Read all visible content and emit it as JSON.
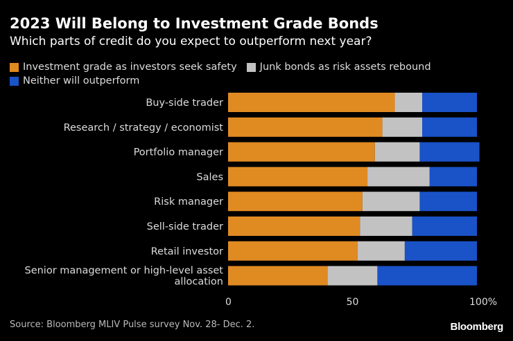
{
  "colors": {
    "investment": "#e08a22",
    "junk": "#c2c2c2",
    "neither": "#1a52c8",
    "background": "#000000"
  },
  "chart_data": {
    "type": "bar",
    "orientation": "horizontal",
    "stacked": true,
    "title": "2023 Will Belong to Investment Grade Bonds",
    "subtitle": "Which parts of credit do you expect to outperform next year?",
    "categories": [
      "Buy-side trader",
      "Research / strategy / economist",
      "Portfolio manager",
      "Sales",
      "Risk manager",
      "Sell-side trader",
      "Retail investor",
      "Senior management or high-level asset allocation"
    ],
    "category_lines": [
      [
        "Buy-side trader"
      ],
      [
        "Research / strategy / economist"
      ],
      [
        "Portfolio manager"
      ],
      [
        "Sales"
      ],
      [
        "Risk manager"
      ],
      [
        "Sell-side trader"
      ],
      [
        "Retail investor"
      ],
      [
        "Senior management or high-level asset",
        "allocation"
      ]
    ],
    "series": [
      {
        "name": "Investment grade as investors seek safety",
        "color_key": "investment",
        "values": [
          67,
          62,
          59,
          56,
          54,
          53,
          52,
          40
        ]
      },
      {
        "name": "Junk bonds as risk assets rebound",
        "color_key": "junk",
        "values": [
          11,
          16,
          18,
          25,
          23,
          21,
          19,
          20
        ]
      },
      {
        "name": "Neither will outperform",
        "color_key": "neither",
        "values": [
          22,
          22,
          24,
          19,
          23,
          26,
          29,
          40
        ]
      }
    ],
    "xlim": [
      0,
      100
    ],
    "xticks": [
      0,
      50,
      100
    ],
    "xtick_labels": [
      "0",
      "50",
      "100%"
    ],
    "xlabel": "",
    "ylabel": "",
    "grid": false,
    "legend_position": "top"
  },
  "source": "Source: Bloomberg MLIV Pulse survey Nov. 28- Dec. 2.",
  "brand": "Bloomberg"
}
